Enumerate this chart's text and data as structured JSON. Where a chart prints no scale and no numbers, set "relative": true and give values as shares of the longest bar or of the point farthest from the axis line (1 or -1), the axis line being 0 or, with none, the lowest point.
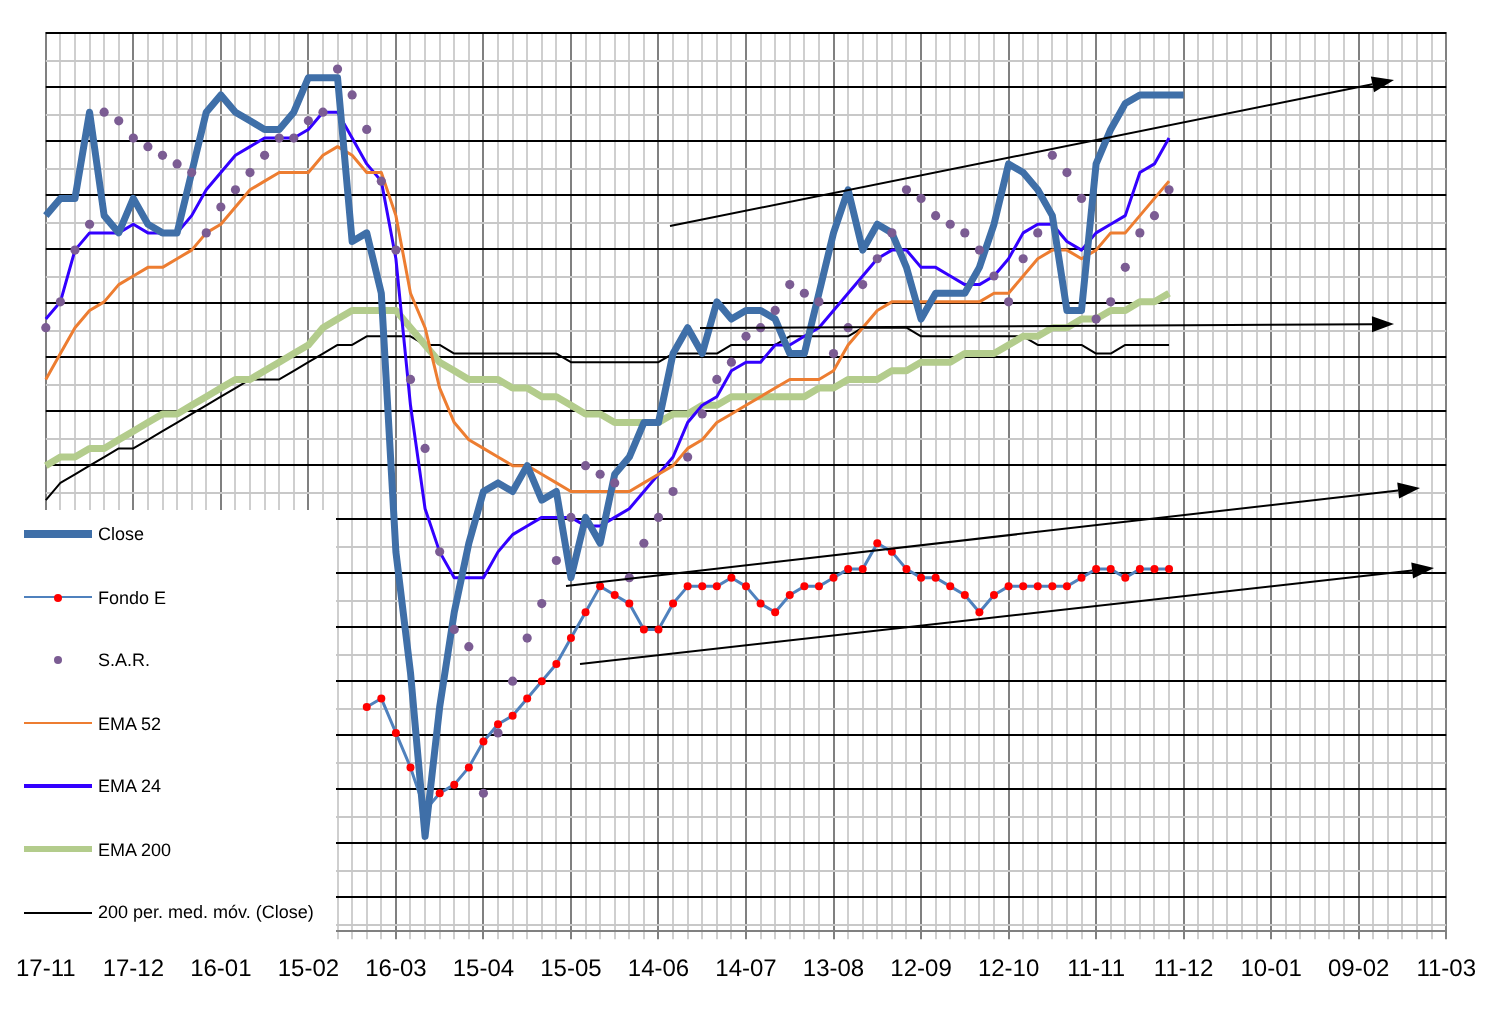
{
  "chart_data": {
    "type": "line",
    "relative": true,
    "grid": true,
    "legend": "bottom left",
    "marker": "none",
    "categories": [
      "17-11",
      null,
      null,
      null,
      null,
      null,
      "17-12",
      null,
      null,
      null,
      null,
      null,
      "16-01",
      null,
      null,
      null,
      null,
      null,
      "15-02",
      null,
      null,
      null,
      null,
      null,
      "16-03",
      null,
      null,
      null,
      null,
      null,
      "15-04",
      null,
      null,
      null,
      null,
      null,
      "15-05",
      null,
      null,
      null,
      null,
      null,
      "14-06",
      null,
      null,
      null,
      null,
      null,
      "14-07",
      null,
      null,
      null,
      null,
      null,
      "13-08",
      null,
      null,
      null,
      null,
      null,
      "12-09",
      null,
      null,
      null,
      null,
      null,
      "12-10",
      null,
      null,
      null,
      null,
      null,
      "11-11",
      null,
      null,
      null,
      null,
      null,
      "11-12",
      null,
      null,
      null,
      null,
      null,
      "10-01",
      null,
      null,
      null,
      null,
      null,
      "09-02",
      null,
      null,
      null,
      null,
      null,
      "11-03"
    ],
    "series": [
      {
        "name": "Close",
        "type": "line",
        "color": "#3f6fa8",
        "values": [
          0.83,
          0.85,
          0.85,
          0.95,
          0.83,
          0.81,
          0.85,
          0.82,
          0.81,
          0.81,
          0.88,
          0.95,
          0.97,
          0.95,
          0.94,
          0.93,
          0.93,
          0.95,
          0.99,
          0.99,
          0.99,
          0.8,
          0.81,
          0.74,
          0.44,
          0.3,
          0.11,
          0.26,
          0.37,
          0.45,
          0.51,
          0.52,
          0.51,
          0.54,
          0.5,
          0.51,
          0.41,
          0.48,
          0.45,
          0.53,
          0.55,
          0.59,
          0.59,
          0.67,
          0.7,
          0.67,
          0.73,
          0.71,
          0.72,
          0.72,
          0.71,
          0.67,
          0.67,
          0.74,
          0.81,
          0.86,
          0.79,
          0.82,
          0.81,
          0.77,
          0.71,
          0.74,
          0.74,
          0.74,
          0.77,
          0.82,
          0.89,
          0.88,
          0.86,
          0.83,
          0.72,
          0.72,
          0.89,
          0.93,
          0.96,
          0.97,
          0.97,
          0.97,
          0.97,
          null,
          null,
          null,
          null,
          null,
          null,
          null,
          null,
          null,
          null,
          null,
          null,
          null,
          null,
          null,
          null,
          null,
          null
        ]
      },
      {
        "name": "Fondo E",
        "type": "line",
        "marker": "circle",
        "color": "#4f81bd",
        "colors": [
          null,
          null,
          null,
          null,
          null,
          null,
          null,
          null,
          null,
          null,
          null,
          null,
          null,
          null,
          null,
          null,
          null,
          null,
          null,
          null,
          null,
          null,
          "#ff0000",
          "#ff0000",
          "#ff0000",
          "#ff0000",
          "#ff0000",
          "#ff0000",
          "#ff0000",
          "#ff0000",
          "#ff0000",
          "#ff0000",
          "#ff0000",
          "#ff0000",
          "#ff0000",
          "#ff0000",
          "#ff0000",
          "#ff0000",
          "#ff0000",
          "#ff0000",
          "#ff0000",
          "#ff0000",
          "#ff0000",
          "#ff0000",
          "#ff0000",
          "#ff0000",
          "#ff0000",
          "#ff0000",
          "#ff0000",
          "#ff0000",
          "#ff0000",
          "#ff0000",
          "#ff0000",
          "#ff0000",
          "#ff0000",
          "#ff0000",
          "#ff0000",
          "#ff0000",
          "#ff0000",
          "#ff0000",
          "#ff0000",
          "#ff0000",
          "#ff0000",
          "#ff0000",
          "#ff0000",
          "#ff0000",
          "#ff0000",
          "#ff0000",
          "#ff0000",
          "#ff0000",
          "#ff0000",
          "#ff0000",
          "#ff0000",
          "#ff0000",
          "#ff0000",
          "#ff0000",
          "#ff0000",
          "#ff0000",
          null,
          null,
          null,
          null,
          null,
          null,
          null,
          null,
          null,
          null,
          null,
          null,
          null,
          null,
          null,
          null,
          null,
          null,
          null
        ],
        "values": [
          null,
          null,
          null,
          null,
          null,
          null,
          null,
          null,
          null,
          null,
          null,
          null,
          null,
          null,
          null,
          null,
          null,
          null,
          null,
          null,
          null,
          null,
          0.26,
          0.27,
          0.23,
          0.19,
          0.14,
          0.16,
          0.17,
          0.19,
          0.22,
          0.24,
          0.25,
          0.27,
          0.29,
          0.31,
          0.34,
          0.37,
          0.4,
          0.39,
          0.38,
          0.35,
          0.35,
          0.38,
          0.4,
          0.4,
          0.4,
          0.41,
          0.4,
          0.38,
          0.37,
          0.39,
          0.4,
          0.4,
          0.41,
          0.42,
          0.42,
          0.45,
          0.44,
          0.42,
          0.41,
          0.41,
          0.4,
          0.39,
          0.37,
          0.39,
          0.4,
          0.4,
          0.4,
          0.4,
          0.4,
          0.41,
          0.42,
          0.42,
          0.41,
          0.42,
          0.42,
          0.42,
          null,
          null,
          null,
          null,
          null,
          null,
          null,
          null,
          null,
          null,
          null,
          null,
          null,
          null,
          null,
          null,
          null,
          null,
          null
        ]
      },
      {
        "name": "S.A.R.",
        "type": "scatter",
        "marker": "circle",
        "color": "#7b5c93",
        "values": [
          0.7,
          0.73,
          0.79,
          0.82,
          0.95,
          0.94,
          0.92,
          0.91,
          0.9,
          0.89,
          0.88,
          0.81,
          0.84,
          0.86,
          0.88,
          0.9,
          0.92,
          0.92,
          0.94,
          0.95,
          1,
          0.97,
          0.93,
          0.87,
          0.79,
          0.64,
          0.56,
          0.44,
          0.35,
          0.33,
          0.16,
          0.23,
          0.29,
          0.34,
          0.38,
          0.43,
          0.48,
          0.54,
          0.53,
          0.52,
          0.41,
          0.45,
          0.48,
          0.51,
          0.55,
          0.6,
          0.64,
          0.66,
          0.69,
          0.7,
          0.72,
          0.75,
          0.74,
          0.73,
          0.67,
          0.7,
          0.75,
          0.78,
          0.81,
          0.86,
          0.85,
          0.83,
          0.82,
          0.81,
          0.79,
          0.76,
          0.73,
          0.78,
          0.81,
          0.9,
          0.88,
          0.85,
          0.71,
          0.73,
          0.77,
          0.81,
          0.83,
          0.86,
          null,
          null,
          null,
          null,
          null,
          null,
          null,
          null,
          null,
          null,
          null,
          null,
          null,
          null,
          null,
          null,
          null,
          null,
          null
        ]
      },
      {
        "name": "EMA 52",
        "type": "line",
        "color": "#ed7d31",
        "values": [
          0.64,
          0.67,
          0.7,
          0.72,
          0.73,
          0.75,
          0.76,
          0.77,
          0.77,
          0.78,
          0.79,
          0.81,
          0.82,
          0.84,
          0.86,
          0.87,
          0.88,
          0.88,
          0.88,
          0.9,
          0.91,
          0.9,
          0.88,
          0.88,
          0.83,
          0.74,
          0.7,
          0.63,
          0.59,
          0.57,
          0.56,
          0.55,
          0.54,
          0.54,
          0.53,
          0.52,
          0.51,
          0.51,
          0.51,
          0.51,
          0.51,
          0.52,
          0.53,
          0.54,
          0.56,
          0.57,
          0.59,
          0.6,
          0.61,
          0.62,
          0.63,
          0.64,
          0.64,
          0.64,
          0.65,
          0.68,
          0.7,
          0.72,
          0.73,
          0.73,
          0.73,
          0.73,
          0.73,
          0.73,
          0.73,
          0.74,
          0.74,
          0.76,
          0.78,
          0.79,
          0.79,
          0.78,
          0.79,
          0.81,
          0.81,
          0.83,
          0.85,
          0.87,
          null,
          null,
          null,
          null,
          null,
          null,
          null,
          null,
          null,
          null,
          null,
          null,
          null,
          null,
          null,
          null,
          null,
          null,
          null
        ]
      },
      {
        "name": "EMA 24",
        "type": "line",
        "color": "#3300ff",
        "values": [
          0.71,
          0.73,
          0.79,
          0.81,
          0.81,
          0.81,
          0.82,
          0.81,
          0.81,
          0.81,
          0.83,
          0.86,
          0.88,
          0.9,
          0.91,
          0.92,
          0.92,
          0.92,
          0.93,
          0.95,
          0.95,
          0.92,
          0.89,
          0.87,
          0.78,
          0.61,
          0.49,
          0.44,
          0.41,
          0.41,
          0.41,
          0.44,
          0.46,
          0.47,
          0.48,
          0.48,
          0.48,
          0.47,
          0.47,
          0.48,
          0.49,
          0.51,
          0.53,
          0.55,
          0.59,
          0.61,
          0.62,
          0.65,
          0.66,
          0.66,
          0.68,
          0.68,
          0.69,
          0.7,
          0.72,
          0.74,
          0.76,
          0.78,
          0.79,
          0.79,
          0.77,
          0.77,
          0.76,
          0.75,
          0.75,
          0.76,
          0.78,
          0.81,
          0.82,
          0.82,
          0.8,
          0.79,
          0.81,
          0.82,
          0.83,
          0.88,
          0.89,
          0.92,
          null,
          null,
          null,
          null,
          null,
          null,
          null,
          null,
          null,
          null,
          null,
          null,
          null,
          null,
          null,
          null,
          null,
          null,
          null
        ]
      },
      {
        "name": "EMA 200",
        "type": "line",
        "color": "#b3cc8c",
        "values": [
          0.54,
          0.55,
          0.55,
          0.56,
          0.56,
          0.57,
          0.58,
          0.59,
          0.6,
          0.6,
          0.61,
          0.62,
          0.63,
          0.64,
          0.64,
          0.65,
          0.66,
          0.67,
          0.68,
          0.7,
          0.71,
          0.72,
          0.72,
          0.72,
          0.72,
          0.7,
          0.68,
          0.66,
          0.65,
          0.64,
          0.64,
          0.64,
          0.63,
          0.63,
          0.62,
          0.62,
          0.61,
          0.6,
          0.6,
          0.59,
          0.59,
          0.59,
          0.59,
          0.6,
          0.6,
          0.61,
          0.61,
          0.62,
          0.62,
          0.62,
          0.62,
          0.62,
          0.62,
          0.63,
          0.63,
          0.64,
          0.64,
          0.64,
          0.65,
          0.65,
          0.66,
          0.66,
          0.66,
          0.67,
          0.67,
          0.67,
          0.68,
          0.69,
          0.69,
          0.7,
          0.7,
          0.71,
          0.71,
          0.72,
          0.72,
          0.73,
          0.73,
          0.74,
          null,
          null,
          null,
          null,
          null,
          null,
          null,
          null,
          null,
          null,
          null,
          null,
          null,
          null,
          null,
          null,
          null,
          null,
          null
        ]
      },
      {
        "name": "200 per. med. móv. (Close)",
        "type": "line",
        "color": "#000000",
        "values": [
          0.5,
          0.52,
          0.53,
          0.54,
          0.55,
          0.56,
          0.56,
          0.57,
          0.58,
          0.59,
          0.6,
          0.61,
          0.62,
          0.63,
          0.64,
          0.64,
          0.64,
          0.65,
          0.66,
          0.67,
          0.68,
          0.68,
          0.69,
          0.69,
          0.69,
          0.69,
          0.68,
          0.68,
          0.67,
          0.67,
          0.67,
          0.67,
          0.67,
          0.67,
          0.67,
          0.67,
          0.66,
          0.66,
          0.66,
          0.66,
          0.66,
          0.66,
          0.66,
          0.67,
          0.67,
          0.67,
          0.67,
          0.68,
          0.68,
          0.68,
          0.68,
          0.69,
          0.69,
          0.69,
          0.69,
          0.69,
          0.7,
          0.7,
          0.7,
          0.7,
          0.69,
          0.69,
          0.69,
          0.69,
          0.69,
          0.69,
          0.69,
          0.69,
          0.68,
          0.68,
          0.68,
          0.68,
          0.67,
          0.67,
          0.68,
          0.68,
          0.68,
          0.68,
          null,
          null,
          null,
          null,
          null,
          null,
          null,
          null,
          null,
          null,
          null,
          null,
          null,
          null,
          null,
          null,
          null,
          null,
          null
        ]
      }
    ]
  }
}
